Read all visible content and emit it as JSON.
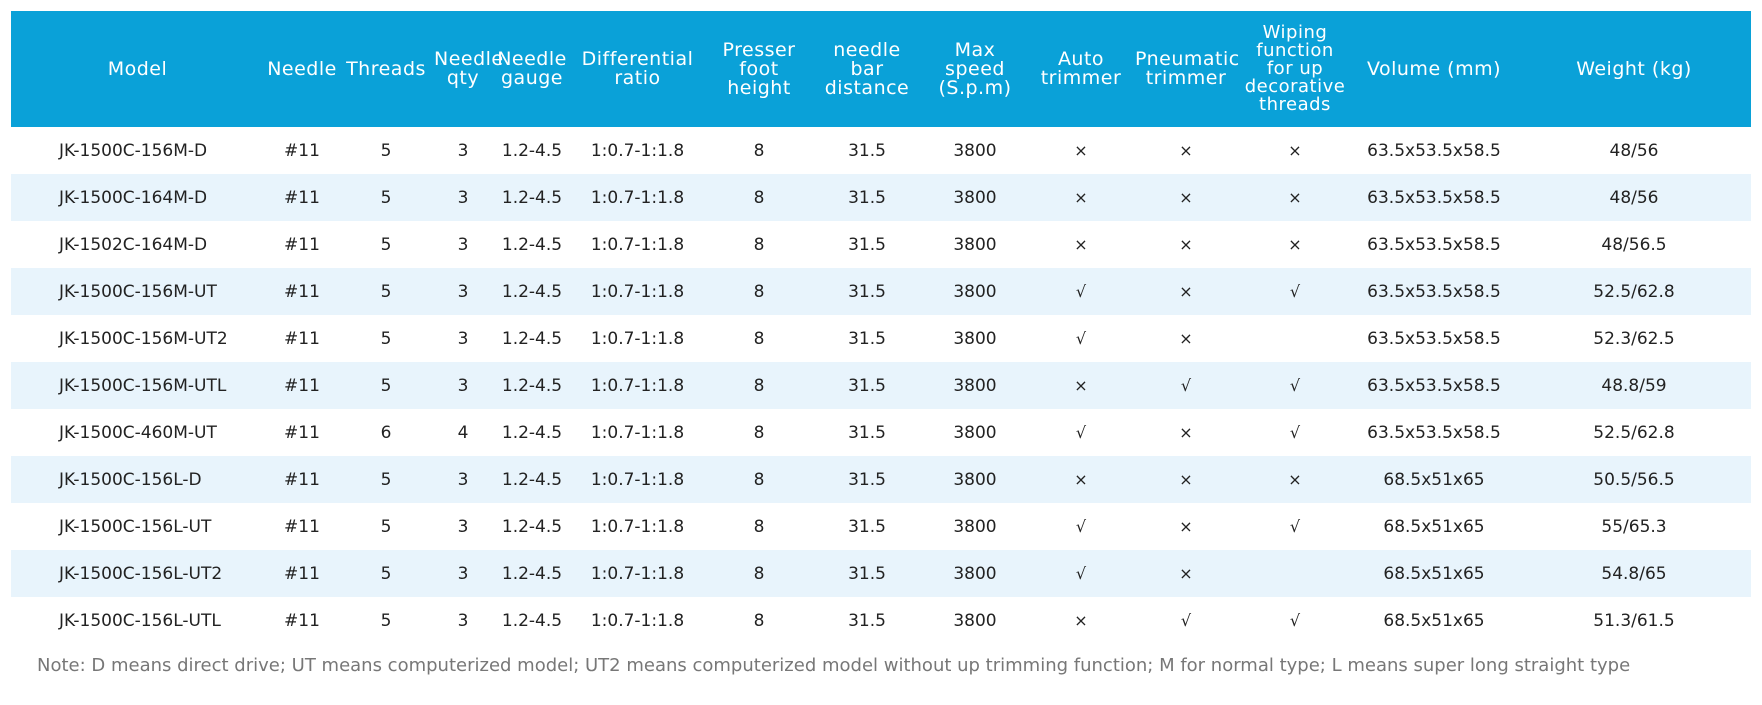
{
  "headers": [
    "Model",
    "Needle",
    "Threads",
    "Needle qty",
    "Needle gauge",
    "Differential ratio",
    "Presser foot height",
    "needle bar distance",
    "Max speed (S.p.m)",
    "Auto trimmer",
    "Pneumatic trimmer",
    "Wiping function for up decorative threads",
    "Volume (mm)",
    "Weight (kg)"
  ],
  "rows": [
    [
      "JK-1500C-156M-D",
      "#11",
      "5",
      "3",
      "1.2-4.5",
      "1:0.7-1:1.8",
      "8",
      "31.5",
      "3800",
      "×",
      "×",
      "×",
      "63.5x53.5x58.5",
      "48/56"
    ],
    [
      "JK-1500C-164M-D",
      "#11",
      "5",
      "3",
      "1.2-4.5",
      "1:0.7-1:1.8",
      "8",
      "31.5",
      "3800",
      "×",
      "×",
      "×",
      "63.5x53.5x58.5",
      "48/56"
    ],
    [
      "JK-1502C-164M-D",
      "#11",
      "5",
      "3",
      "1.2-4.5",
      "1:0.7-1:1.8",
      "8",
      "31.5",
      "3800",
      "×",
      "×",
      "×",
      "63.5x53.5x58.5",
      "48/56.5"
    ],
    [
      "JK-1500C-156M-UT",
      "#11",
      "5",
      "3",
      "1.2-4.5",
      "1:0.7-1:1.8",
      "8",
      "31.5",
      "3800",
      "√",
      "×",
      "√",
      "63.5x53.5x58.5",
      "52.5/62.8"
    ],
    [
      "JK-1500C-156M-UT2",
      "#11",
      "5",
      "3",
      "1.2-4.5",
      "1:0.7-1:1.8",
      "8",
      "31.5",
      "3800",
      "√",
      "×",
      "",
      "63.5x53.5x58.5",
      "52.3/62.5"
    ],
    [
      "JK-1500C-156M-UTL",
      "#11",
      "5",
      "3",
      "1.2-4.5",
      "1:0.7-1:1.8",
      "8",
      "31.5",
      "3800",
      "×",
      "√",
      "√",
      "63.5x53.5x58.5",
      "48.8/59"
    ],
    [
      "JK-1500C-460M-UT",
      "#11",
      "6",
      "4",
      "1.2-4.5",
      "1:0.7-1:1.8",
      "8",
      "31.5",
      "3800",
      "√",
      "×",
      "√",
      "63.5x53.5x58.5",
      "52.5/62.8"
    ],
    [
      "JK-1500C-156L-D",
      "#11",
      "5",
      "3",
      "1.2-4.5",
      "1:0.7-1:1.8",
      "8",
      "31.5",
      "3800",
      "×",
      "×",
      "×",
      "68.5x51x65",
      "50.5/56.5"
    ],
    [
      "JK-1500C-156L-UT",
      "#11",
      "5",
      "3",
      "1.2-4.5",
      "1:0.7-1:1.8",
      "8",
      "31.5",
      "3800",
      "√",
      "×",
      "√",
      "68.5x51x65",
      "55/65.3"
    ],
    [
      "JK-1500C-156L-UT2",
      "#11",
      "5",
      "3",
      "1.2-4.5",
      "1:0.7-1:1.8",
      "8",
      "31.5",
      "3800",
      "√",
      "×",
      "",
      "68.5x51x65",
      "54.8/65"
    ],
    [
      "JK-1500C-156L-UTL",
      "#11",
      "5",
      "3",
      "1.2-4.5",
      "1:0.7-1:1.8",
      "8",
      "31.5",
      "3800",
      "×",
      "√",
      "√",
      "68.5x51x65",
      "51.3/61.5"
    ]
  ],
  "note": "Note: D means direct drive; UT means computerized model; UT2 means computerized model without up trimming function; M for normal type; L means super long straight type",
  "colors": {
    "header_bg": "#0aa1d8",
    "header_text": "#ffffff",
    "stripe": "#e8f4fc",
    "note_text": "#777777"
  }
}
